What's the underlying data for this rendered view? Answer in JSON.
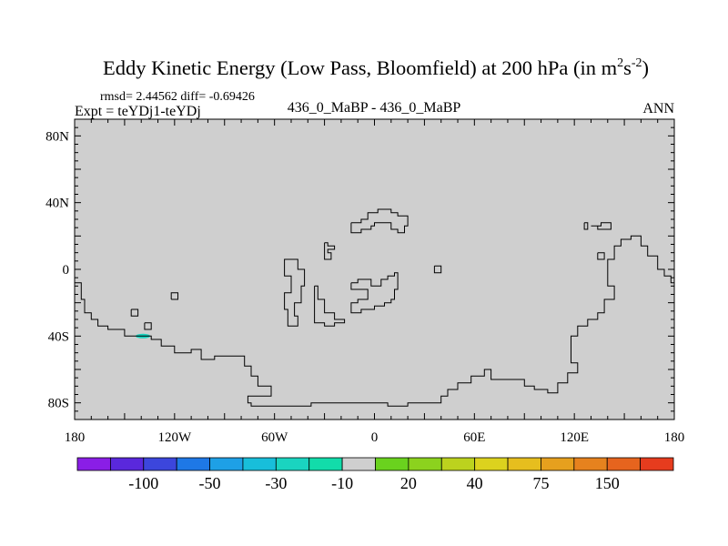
{
  "chart_data": {
    "type": "heatmap",
    "title": "Eddy Kinetic Energy (Low Pass, Bloomfield) at 200 hPa (in m",
    "title_unit_sup1": "2",
    "title_unit_mid": "s",
    "title_unit_sup2": "-2",
    "title_unit_close": ")",
    "stats": "rmsd= 2.44562  diff= -0.69426",
    "left_label": "Expt = teYDj1-teYDj",
    "center_label": "436_0_MaBP - 436_0_MaBP",
    "right_label": "ANN",
    "xlim": [
      -180,
      180
    ],
    "ylim": [
      -90,
      90
    ],
    "x_ticks": [
      {
        "value": -180,
        "label": "180"
      },
      {
        "value": -120,
        "label": "120W"
      },
      {
        "value": -60,
        "label": "60W"
      },
      {
        "value": 0,
        "label": "0"
      },
      {
        "value": 60,
        "label": "60E"
      },
      {
        "value": 120,
        "label": "120E"
      },
      {
        "value": 180,
        "label": "180"
      }
    ],
    "y_ticks": [
      {
        "value": 80,
        "label": "80N"
      },
      {
        "value": 40,
        "label": "40N"
      },
      {
        "value": 0,
        "label": "0"
      },
      {
        "value": -40,
        "label": "40S"
      },
      {
        "value": -80,
        "label": "80S"
      }
    ],
    "background_level_color": "#cfcfcf",
    "colorbar": {
      "colors": [
        "#8a1ee6",
        "#5a28dc",
        "#3c46dc",
        "#1e78e6",
        "#1ea0e6",
        "#18beda",
        "#1ad4c0",
        "#12dcaa",
        "#cfcfcf",
        "#6ad21e",
        "#8cd21e",
        "#bcd21e",
        "#dcd21e",
        "#e6be1e",
        "#e6a01e",
        "#e6821e",
        "#e6641e",
        "#e63c1e"
      ],
      "labels": [
        {
          "after_box": 2,
          "label": "-100"
        },
        {
          "after_box": 4,
          "label": "-50"
        },
        {
          "after_box": 6,
          "label": "-30"
        },
        {
          "after_box": 8,
          "label": "-10"
        },
        {
          "after_box": 10,
          "label": "20"
        },
        {
          "after_box": 12,
          "label": "40"
        },
        {
          "after_box": 14,
          "label": "75"
        },
        {
          "after_box": 16,
          "label": "150"
        }
      ]
    },
    "anomalies": [
      {
        "lon": -139,
        "lat": -40,
        "level": "-30 to -10",
        "color": "#1ad4c0"
      }
    ],
    "coastlines": [
      [
        [
          -180,
          -8
        ],
        [
          -176,
          -8
        ],
        [
          -176,
          -18
        ],
        [
          -174,
          -18
        ],
        [
          -174,
          -26
        ],
        [
          -170,
          -26
        ],
        [
          -170,
          -30
        ],
        [
          -166,
          -30
        ],
        [
          -166,
          -34
        ],
        [
          -160,
          -34
        ],
        [
          -160,
          -36
        ],
        [
          -150,
          -36
        ],
        [
          -150,
          -40
        ],
        [
          -134,
          -40
        ],
        [
          -134,
          -42
        ],
        [
          -128,
          -42
        ],
        [
          -128,
          -46
        ],
        [
          -120,
          -46
        ],
        [
          -120,
          -50
        ],
        [
          -110,
          -50
        ],
        [
          -110,
          -48
        ],
        [
          -104,
          -48
        ],
        [
          -104,
          -54
        ],
        [
          -96,
          -54
        ],
        [
          -96,
          -52
        ],
        [
          -78,
          -52
        ],
        [
          -78,
          -58
        ],
        [
          -74,
          -58
        ],
        [
          -74,
          -64
        ],
        [
          -70,
          -64
        ],
        [
          -70,
          -70
        ],
        [
          -62,
          -70
        ],
        [
          -62,
          -76
        ],
        [
          -76,
          -76
        ],
        [
          -76,
          -80
        ],
        [
          -74,
          -80
        ],
        [
          -74,
          -82
        ],
        [
          -38,
          -82
        ],
        [
          -38,
          -80
        ],
        [
          8,
          -80
        ],
        [
          8,
          -82
        ],
        [
          20,
          -82
        ],
        [
          20,
          -80
        ],
        [
          40,
          -80
        ],
        [
          40,
          -76
        ],
        [
          44,
          -76
        ],
        [
          44,
          -72
        ],
        [
          50,
          -72
        ],
        [
          50,
          -68
        ],
        [
          58,
          -68
        ],
        [
          58,
          -64
        ],
        [
          66,
          -64
        ],
        [
          66,
          -60
        ],
        [
          70,
          -60
        ],
        [
          70,
          -66
        ],
        [
          90,
          -66
        ],
        [
          90,
          -70
        ],
        [
          96,
          -70
        ],
        [
          96,
          -72
        ],
        [
          104,
          -72
        ],
        [
          104,
          -74
        ],
        [
          110,
          -74
        ],
        [
          110,
          -68
        ],
        [
          116,
          -68
        ],
        [
          116,
          -62
        ],
        [
          122,
          -62
        ],
        [
          122,
          -56
        ],
        [
          118,
          -56
        ],
        [
          118,
          -40
        ],
        [
          122,
          -40
        ],
        [
          122,
          -34
        ],
        [
          128,
          -34
        ],
        [
          128,
          -30
        ],
        [
          134,
          -30
        ],
        [
          134,
          -26
        ],
        [
          138,
          -26
        ],
        [
          138,
          -18
        ],
        [
          144,
          -18
        ],
        [
          144,
          -10
        ],
        [
          140,
          -10
        ],
        [
          140,
          6
        ],
        [
          144,
          6
        ],
        [
          144,
          14
        ],
        [
          148,
          14
        ],
        [
          148,
          18
        ],
        [
          154,
          18
        ],
        [
          154,
          20
        ],
        [
          160,
          20
        ],
        [
          160,
          14
        ],
        [
          164,
          14
        ],
        [
          164,
          8
        ],
        [
          170,
          8
        ],
        [
          170,
          0
        ],
        [
          174,
          0
        ],
        [
          174,
          -4
        ],
        [
          178,
          -4
        ],
        [
          178,
          -8
        ],
        [
          180,
          -8
        ]
      ],
      [
        [
          -122,
          -18
        ],
        [
          -118,
          -18
        ],
        [
          -118,
          -14
        ],
        [
          -122,
          -14
        ],
        [
          -122,
          -18
        ]
      ],
      [
        [
          -146,
          -24
        ],
        [
          -142,
          -24
        ],
        [
          -142,
          -28
        ],
        [
          -146,
          -28
        ],
        [
          -146,
          -24
        ]
      ],
      [
        [
          -138,
          -32
        ],
        [
          -134,
          -32
        ],
        [
          -134,
          -36
        ],
        [
          -138,
          -36
        ],
        [
          -138,
          -32
        ]
      ],
      [
        [
          -50,
          6
        ],
        [
          -46,
          6
        ],
        [
          -46,
          0
        ],
        [
          -42,
          0
        ],
        [
          -42,
          -10
        ],
        [
          -44,
          -10
        ],
        [
          -44,
          -20
        ],
        [
          -48,
          -20
        ],
        [
          -48,
          -28
        ],
        [
          -46,
          -28
        ],
        [
          -46,
          -34
        ],
        [
          -52,
          -34
        ],
        [
          -52,
          -24
        ],
        [
          -54,
          -24
        ],
        [
          -54,
          -14
        ],
        [
          -50,
          -14
        ],
        [
          -50,
          -4
        ],
        [
          -54,
          -4
        ],
        [
          -54,
          6
        ],
        [
          -50,
          6
        ]
      ],
      [
        [
          -36,
          -10
        ],
        [
          -34,
          -10
        ],
        [
          -34,
          -18
        ],
        [
          -30,
          -18
        ],
        [
          -30,
          -26
        ],
        [
          -24,
          -26
        ],
        [
          -24,
          -30
        ],
        [
          -18,
          -30
        ],
        [
          -18,
          -32
        ],
        [
          -24,
          -32
        ],
        [
          -24,
          -34
        ],
        [
          -30,
          -34
        ],
        [
          -30,
          -32
        ],
        [
          -36,
          -32
        ],
        [
          -36,
          -10
        ]
      ],
      [
        [
          -30,
          16
        ],
        [
          -28,
          16
        ],
        [
          -28,
          14
        ],
        [
          -24,
          14
        ],
        [
          -24,
          12
        ],
        [
          -28,
          12
        ],
        [
          -28,
          10
        ],
        [
          -26,
          10
        ],
        [
          -26,
          6
        ],
        [
          -30,
          6
        ],
        [
          -30,
          16
        ]
      ],
      [
        [
          -14,
          -8
        ],
        [
          -10,
          -8
        ],
        [
          -10,
          -6
        ],
        [
          -2,
          -6
        ],
        [
          -2,
          -10
        ],
        [
          4,
          -10
        ],
        [
          4,
          -6
        ],
        [
          8,
          -6
        ],
        [
          8,
          -4
        ],
        [
          12,
          -4
        ],
        [
          12,
          -2
        ],
        [
          14,
          -2
        ],
        [
          14,
          -12
        ],
        [
          12,
          -12
        ],
        [
          12,
          -18
        ],
        [
          10,
          -18
        ],
        [
          10,
          -20
        ],
        [
          6,
          -20
        ],
        [
          6,
          -22
        ],
        [
          0,
          -22
        ],
        [
          0,
          -24
        ],
        [
          -8,
          -24
        ],
        [
          -8,
          -26
        ],
        [
          -14,
          -26
        ],
        [
          -14,
          -20
        ],
        [
          -10,
          -20
        ],
        [
          -10,
          -18
        ],
        [
          -4,
          -18
        ],
        [
          -4,
          -12
        ],
        [
          -14,
          -12
        ],
        [
          -14,
          -8
        ]
      ],
      [
        [
          -14,
          28
        ],
        [
          -8,
          28
        ],
        [
          -8,
          30
        ],
        [
          -4,
          30
        ],
        [
          -4,
          34
        ],
        [
          2,
          34
        ],
        [
          2,
          36
        ],
        [
          10,
          36
        ],
        [
          10,
          34
        ],
        [
          14,
          34
        ],
        [
          14,
          32
        ],
        [
          20,
          32
        ],
        [
          20,
          26
        ],
        [
          18,
          26
        ],
        [
          18,
          22
        ],
        [
          14,
          22
        ],
        [
          14,
          24
        ],
        [
          10,
          24
        ],
        [
          10,
          28
        ],
        [
          0,
          28
        ],
        [
          0,
          26
        ],
        [
          -2,
          26
        ],
        [
          -2,
          24
        ],
        [
          -8,
          24
        ],
        [
          -8,
          22
        ],
        [
          -14,
          22
        ],
        [
          -14,
          28
        ]
      ],
      [
        [
          36,
          2
        ],
        [
          40,
          2
        ],
        [
          40,
          -2
        ],
        [
          36,
          -2
        ],
        [
          36,
          2
        ]
      ],
      [
        [
          134,
          10
        ],
        [
          138,
          10
        ],
        [
          138,
          6
        ],
        [
          134,
          6
        ],
        [
          134,
          10
        ]
      ],
      [
        [
          130,
          26
        ],
        [
          136,
          26
        ],
        [
          136,
          28
        ],
        [
          142,
          28
        ],
        [
          142,
          24
        ],
        [
          134,
          24
        ],
        [
          134,
          26
        ],
        [
          130,
          26
        ]
      ],
      [
        [
          126,
          28
        ],
        [
          128,
          28
        ],
        [
          128,
          24
        ],
        [
          126,
          24
        ],
        [
          126,
          28
        ]
      ]
    ]
  }
}
